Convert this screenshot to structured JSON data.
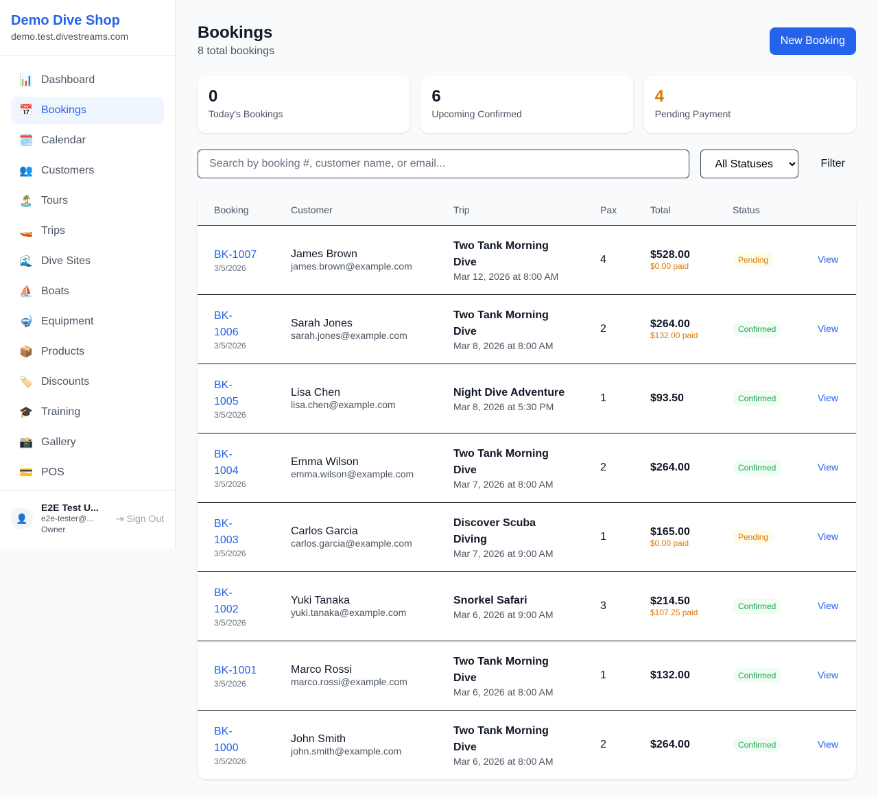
{
  "sidebar": {
    "shop_name": "Demo Dive Shop",
    "domain": "demo.test.divestreams.com",
    "items": [
      {
        "label": "Dashboard",
        "icon": "📊",
        "name": "dashboard"
      },
      {
        "label": "Bookings",
        "icon": "📅",
        "name": "bookings",
        "active": true
      },
      {
        "label": "Calendar",
        "icon": "🗓️",
        "name": "calendar"
      },
      {
        "label": "Customers",
        "icon": "👥",
        "name": "customers"
      },
      {
        "label": "Tours",
        "icon": "🏝️",
        "name": "tours"
      },
      {
        "label": "Trips",
        "icon": "🚤",
        "name": "trips"
      },
      {
        "label": "Dive Sites",
        "icon": "🌊",
        "name": "dive-sites"
      },
      {
        "label": "Boats",
        "icon": "⛵",
        "name": "boats"
      },
      {
        "label": "Equipment",
        "icon": "🤿",
        "name": "equipment"
      },
      {
        "label": "Products",
        "icon": "📦",
        "name": "products"
      },
      {
        "label": "Discounts",
        "icon": "🏷️",
        "name": "discounts"
      },
      {
        "label": "Training",
        "icon": "🎓",
        "name": "training"
      },
      {
        "label": "Gallery",
        "icon": "📸",
        "name": "gallery"
      },
      {
        "label": "POS",
        "icon": "💳",
        "name": "pos"
      }
    ],
    "user": {
      "name": "E2E Test U...",
      "email": "e2e-tester@...",
      "role": "Owner",
      "sign_out": "Sign Out"
    }
  },
  "header": {
    "title": "Bookings",
    "subtitle": "8 total bookings",
    "new_button": "New Booking"
  },
  "stats": [
    {
      "value": "0",
      "label": "Today's Bookings",
      "color": "#111827"
    },
    {
      "value": "6",
      "label": "Upcoming Confirmed",
      "color": "#111827"
    },
    {
      "value": "4",
      "label": "Pending Payment",
      "color": "#d97706"
    }
  ],
  "filters": {
    "search_placeholder": "Search by booking #, customer name, or email...",
    "status_selected": "All Statuses",
    "filter_button": "Filter"
  },
  "table": {
    "columns": [
      "Booking",
      "Customer",
      "Trip",
      "Pax",
      "Total",
      "Status",
      ""
    ],
    "rows": [
      {
        "id": "BK-1007",
        "date": "3/5/2026",
        "customer": "James Brown",
        "email": "james.brown@example.com",
        "trip": "Two Tank Morning Dive",
        "trip_date": "Mar 12, 2026 at 8:00 AM",
        "pax": "4",
        "total": "$528.00",
        "paid": "$0.00 paid",
        "status": "Pending",
        "action": "View"
      },
      {
        "id": "BK-1006",
        "date": "3/5/2026",
        "customer": "Sarah Jones",
        "email": "sarah.jones@example.com",
        "trip": "Two Tank Morning Dive",
        "trip_date": "Mar 8, 2026 at 8:00 AM",
        "pax": "2",
        "total": "$264.00",
        "paid": "$132.00 paid",
        "status": "Confirmed",
        "action": "View"
      },
      {
        "id": "BK-1005",
        "date": "3/5/2026",
        "customer": "Lisa Chen",
        "email": "lisa.chen@example.com",
        "trip": "Night Dive Adventure",
        "trip_date": "Mar 8, 2026 at 5:30 PM",
        "pax": "1",
        "total": "$93.50",
        "paid": "",
        "status": "Confirmed",
        "action": "View"
      },
      {
        "id": "BK-1004",
        "date": "3/5/2026",
        "customer": "Emma Wilson",
        "email": "emma.wilson@example.com",
        "trip": "Two Tank Morning Dive",
        "trip_date": "Mar 7, 2026 at 8:00 AM",
        "pax": "2",
        "total": "$264.00",
        "paid": "",
        "status": "Confirmed",
        "action": "View"
      },
      {
        "id": "BK-1003",
        "date": "3/5/2026",
        "customer": "Carlos Garcia",
        "email": "carlos.garcia@example.com",
        "trip": "Discover Scuba Diving",
        "trip_date": "Mar 7, 2026 at 9:00 AM",
        "pax": "1",
        "total": "$165.00",
        "paid": "$0.00 paid",
        "status": "Pending",
        "action": "View"
      },
      {
        "id": "BK-1002",
        "date": "3/5/2026",
        "customer": "Yuki Tanaka",
        "email": "yuki.tanaka@example.com",
        "trip": "Snorkel Safari",
        "trip_date": "Mar 6, 2026 at 9:00 AM",
        "pax": "3",
        "total": "$214.50",
        "paid": "$107.25 paid",
        "status": "Confirmed",
        "action": "View"
      },
      {
        "id": "BK-1001",
        "date": "3/5/2026",
        "customer": "Marco Rossi",
        "email": "marco.rossi@example.com",
        "trip": "Two Tank Morning Dive",
        "trip_date": "Mar 6, 2026 at 8:00 AM",
        "pax": "1",
        "total": "$132.00",
        "paid": "",
        "status": "Confirmed",
        "action": "View"
      },
      {
        "id": "BK-1000",
        "date": "3/5/2026",
        "customer": "John Smith",
        "email": "john.smith@example.com",
        "trip": "Two Tank Morning Dive",
        "trip_date": "Mar 6, 2026 at 8:00 AM",
        "pax": "2",
        "total": "$264.00",
        "paid": "",
        "status": "Confirmed",
        "action": "View"
      }
    ]
  }
}
